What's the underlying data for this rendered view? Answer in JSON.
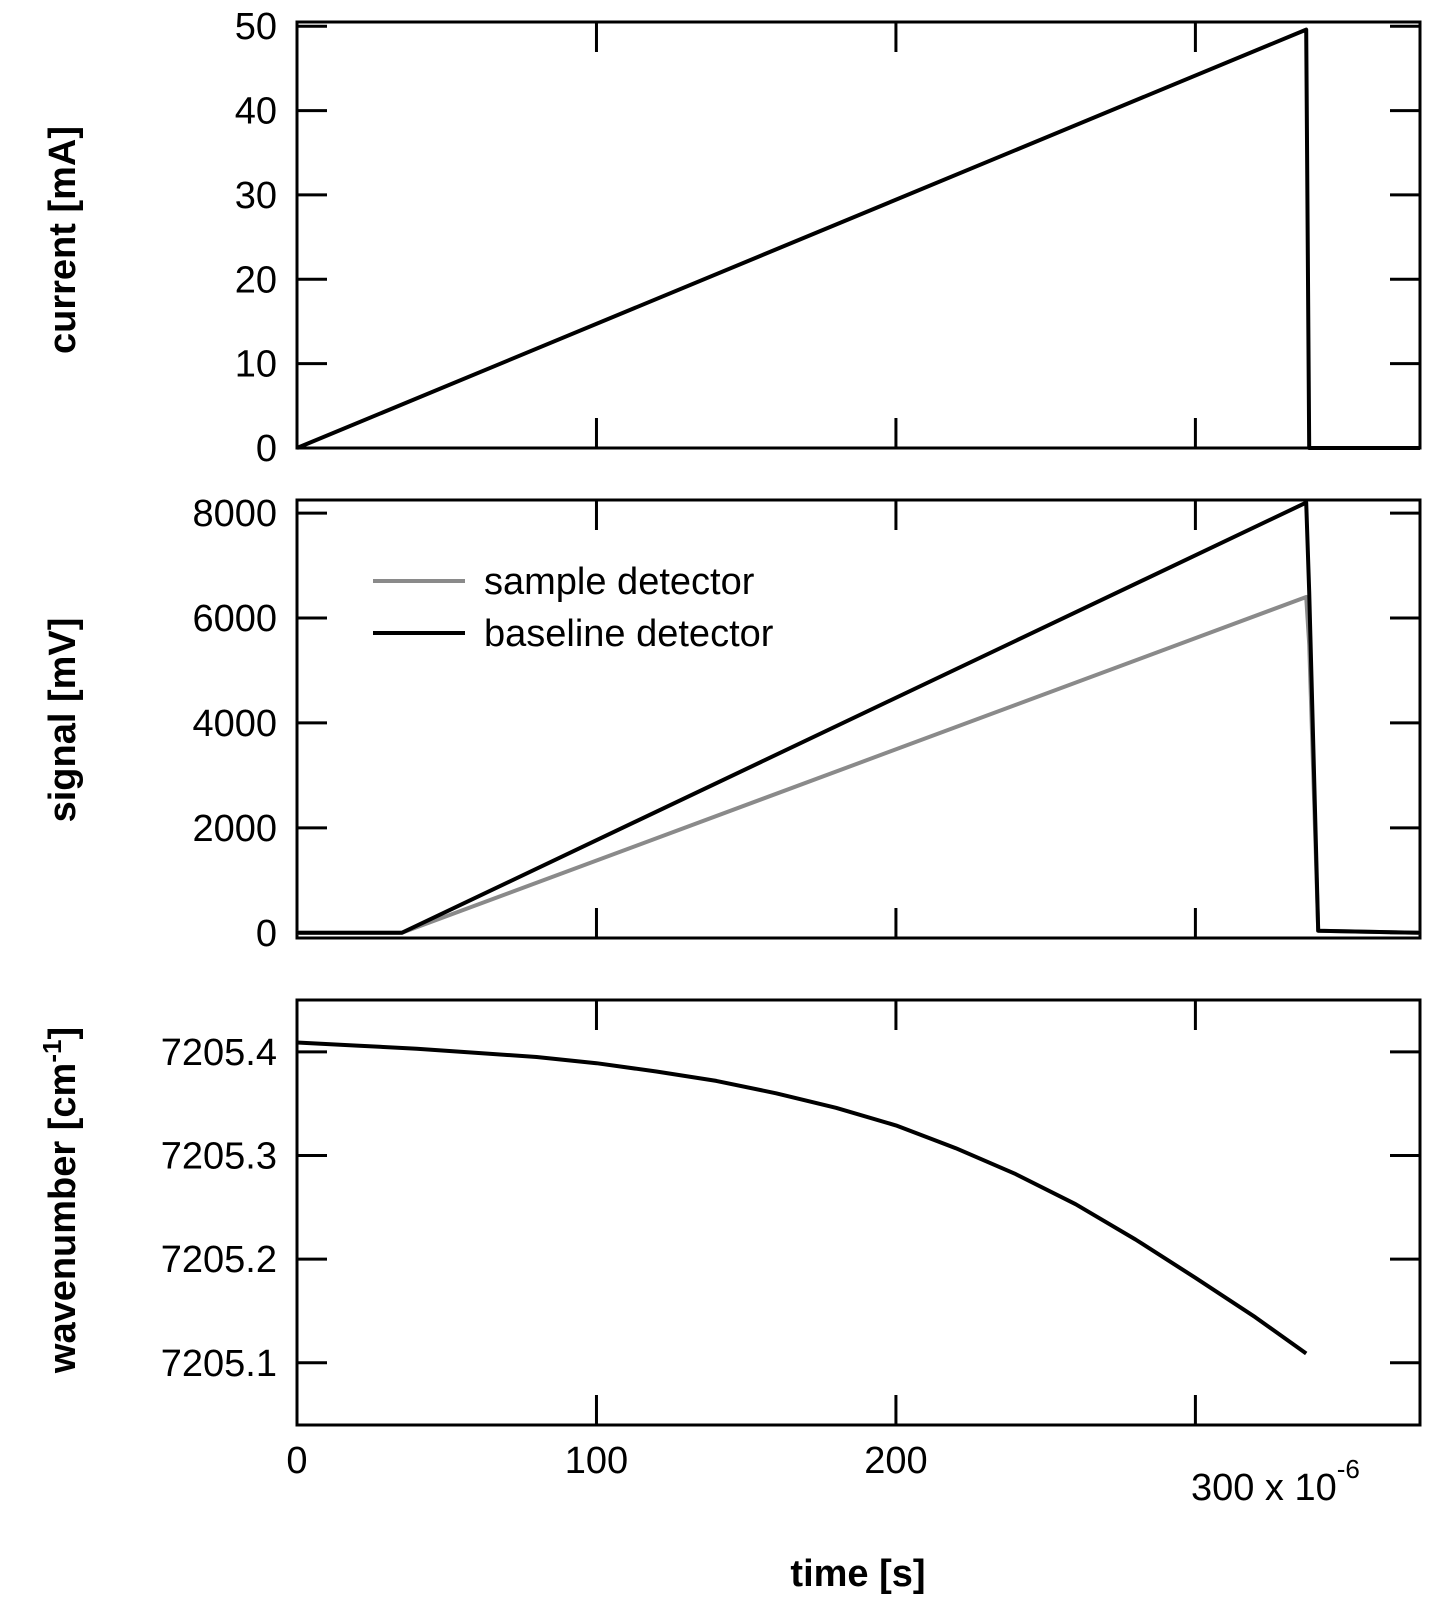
{
  "chart_data": [
    {
      "type": "line",
      "ylabel": "current [mA]",
      "xlim": [
        0,
        0.000375
      ],
      "ylim": [
        0,
        50.5
      ],
      "yticks": [
        "0",
        "10",
        "20",
        "30",
        "40",
        "50"
      ],
      "ytick_values": [
        0,
        10,
        20,
        30,
        40,
        50
      ],
      "series": [
        {
          "color": "#000000",
          "x": [
            0,
            0.000337,
            0.000337,
            0.000338,
            0.000375
          ],
          "y": [
            0,
            49.6,
            49.6,
            0,
            0
          ]
        }
      ]
    },
    {
      "type": "line",
      "ylabel": "signal [mV]",
      "xlim": [
        0,
        0.000375
      ],
      "ylim": [
        -100,
        8250
      ],
      "yticks": [
        "0",
        "2000",
        "4000",
        "6000",
        "8000"
      ],
      "ytick_values": [
        0,
        2000,
        4000,
        6000,
        8000
      ],
      "legend": {
        "position": "top-left"
      },
      "series": [
        {
          "name": "sample detector",
          "color": "#8a8a8a",
          "x": [
            0,
            3.5e-05,
            0.000337,
            0.000338,
            0.000341,
            0.000375
          ],
          "y": [
            0,
            0,
            6400,
            5500,
            40,
            0
          ]
        },
        {
          "name": "baseline detector",
          "color": "#000000",
          "x": [
            0,
            3.5e-05,
            0.000337,
            0.000338,
            0.000341,
            0.000375
          ],
          "y": [
            0,
            0,
            8200,
            6500,
            40,
            0
          ]
        }
      ]
    },
    {
      "type": "line",
      "ylabel": "wavenumber [cm",
      "ylabel_superscript": "-1",
      "ylabel_close": "]",
      "xlabel": "time [s]",
      "xlim": [
        0,
        0.000375
      ],
      "ylim": [
        7205.04,
        7205.45
      ],
      "yticks": [
        "7205.1",
        "7205.2",
        "7205.3",
        "7205.4"
      ],
      "ytick_values": [
        7205.1,
        7205.2,
        7205.3,
        7205.4
      ],
      "xticks": [
        "0",
        "100",
        "200",
        "300 x 10"
      ],
      "xtick_values": [
        0,
        0.0001,
        0.0002,
        0.0003
      ],
      "xtick_multiplier_superscript": "-6",
      "series": [
        {
          "color": "#000000",
          "x": [
            0,
            2e-05,
            4e-05,
            6e-05,
            8e-05,
            0.0001,
            0.00012,
            0.00014,
            0.00016,
            0.00018,
            0.0002,
            0.00022,
            0.00024,
            0.00026,
            0.00028,
            0.0003,
            0.00032,
            0.000337
          ],
          "y": [
            7205.409,
            7205.406,
            7205.403,
            7205.399,
            7205.395,
            7205.389,
            7205.381,
            7205.372,
            7205.36,
            7205.346,
            7205.329,
            7205.307,
            7205.282,
            7205.253,
            7205.219,
            7205.182,
            7205.144,
            7205.109
          ]
        }
      ]
    }
  ]
}
